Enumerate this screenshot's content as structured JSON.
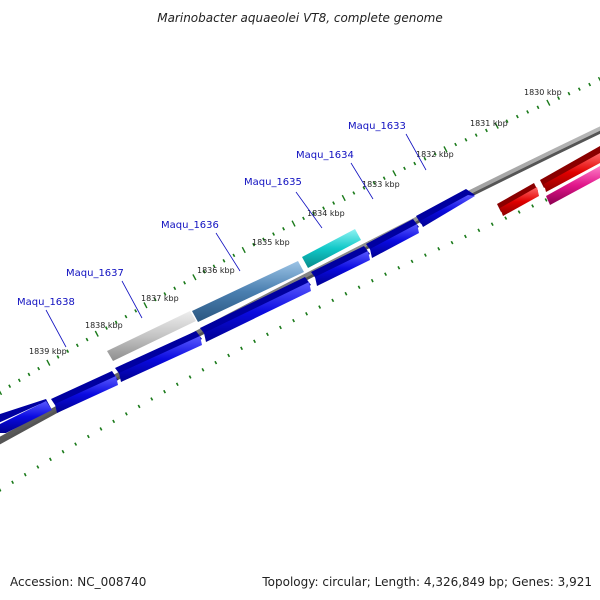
{
  "title": "Marinobacter aquaeolei VT8, complete genome",
  "footer": {
    "accession": "Accession: NC_008740",
    "summary": "Topology: circular; Length: 4,326,849 bp; Genes: 3,921"
  },
  "ticks": [
    "1830 kbp",
    "1831 kbp",
    "1832 kbp",
    "1833 kbp",
    "1834 kbp",
    "1835 kbp",
    "1836 kbp",
    "1837 kbp",
    "1838 kbp",
    "1839 kbp"
  ],
  "genes": [
    {
      "name": "Maqu_1633"
    },
    {
      "name": "Maqu_1634"
    },
    {
      "name": "Maqu_1635"
    },
    {
      "name": "Maqu_1636"
    },
    {
      "name": "Maqu_1637"
    },
    {
      "name": "Maqu_1638"
    }
  ],
  "colors": {
    "backbone": "#808080",
    "tick_dots": "#1a7a1a",
    "cds_blue": "#0a0ae0",
    "cds_red": "#e00000",
    "cds_magenta": "#e0158a",
    "highlight_cyan": "#10c8c8",
    "highlight_steel": "#4a7fb0",
    "highlight_gray": "#b8b8b8",
    "gene_label": "#1010c0"
  },
  "icons": {
    "gene": "arrow-block",
    "tick": "dash-mark"
  }
}
